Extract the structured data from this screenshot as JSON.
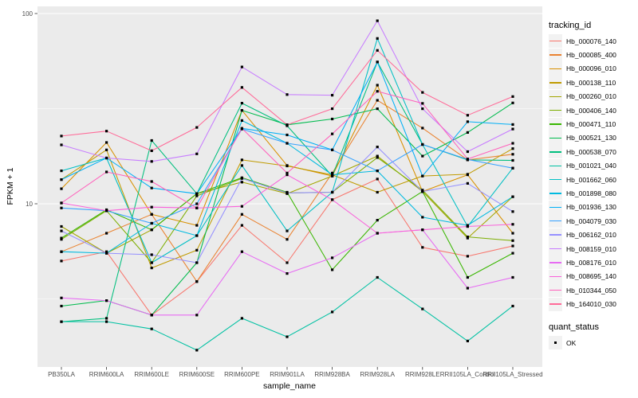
{
  "axes": {
    "y_title": "FPKM + 1",
    "x_title": "sample_name",
    "y_ticks": [
      {
        "label": "100",
        "value": 100
      },
      {
        "label": "10",
        "value": 10
      }
    ],
    "y_minor_values": [
      31.623,
      3.1623
    ],
    "y_scale": "log10"
  },
  "legend": {
    "tracking_title": "tracking_id",
    "quant_title": "quant_status",
    "quant_items": [
      "OK"
    ]
  },
  "colors": {
    "panel_bg": "#EBEBEB",
    "grid": "#FFFFFF",
    "axis_text": "#4D4D4D",
    "tick_mark": "#333333",
    "point": "#000000",
    "legend_key_bg": "#F2F2F2"
  },
  "chart_data": {
    "type": "line",
    "title": "",
    "xlabel": "sample_name",
    "ylabel": "FPKM + 1",
    "y_scale": "log10",
    "ylim": [
      1.4,
      120
    ],
    "grid": "white major at 10 and 100, minor at 3.16 and 31.6",
    "legend_position": "right",
    "point_marker": "black-square",
    "quant_status": "OK",
    "categories": [
      "PB350LA",
      "RRIM600LA",
      "RRIM600LE",
      "RRIM600SE",
      "RRIM600PE",
      "RRIM901LA",
      "RRIM928BA",
      "RRIM928LA",
      "RRIM928LE",
      "RRII105LA_Control",
      "RRII105LA_Stressed"
    ],
    "series": [
      {
        "name": "Hb_000076_140",
        "color": "#F8766D",
        "values": [
          5.0,
          5.6,
          2.6,
          3.9,
          7.7,
          4.9,
          10.5,
          13.5,
          5.9,
          5.3,
          6.0
        ]
      },
      {
        "name": "Hb_000085_400",
        "color": "#EA8331",
        "values": [
          5.6,
          7.0,
          8.8,
          3.9,
          8.8,
          6.5,
          14.5,
          35.0,
          25.0,
          17.0,
          18.2
        ]
      },
      {
        "name": "Hb_000096_010",
        "color": "#D89000",
        "values": [
          12.0,
          21.0,
          8.8,
          7.7,
          31.0,
          15.9,
          14.0,
          42.0,
          11.6,
          14.2,
          7.0
        ]
      },
      {
        "name": "Hb_000138_110",
        "color": "#C09B00",
        "values": [
          13.4,
          19.2,
          4.6,
          5.7,
          17.0,
          15.8,
          14.2,
          11.5,
          14.0,
          14.3,
          19.5
        ]
      },
      {
        "name": "Hb_000260_010",
        "color": "#A3A500",
        "values": [
          7.6,
          5.5,
          7.3,
          11.3,
          13.0,
          11.3,
          14.0,
          17.8,
          11.6,
          6.6,
          10.9
        ]
      },
      {
        "name": "Hb_000406_140",
        "color": "#7CAE00",
        "values": [
          6.5,
          9.2,
          4.9,
          11.0,
          13.6,
          11.4,
          11.5,
          17.5,
          11.8,
          6.7,
          6.4
        ]
      },
      {
        "name": "Hb_000471_110",
        "color": "#39B600",
        "values": [
          6.6,
          9.3,
          7.3,
          11.3,
          13.7,
          11.5,
          4.5,
          8.2,
          11.6,
          4.1,
          5.5
        ]
      },
      {
        "name": "Hb_000521_130",
        "color": "#00BB4E",
        "values": [
          2.9,
          3.1,
          2.6,
          4.9,
          31.0,
          26.0,
          27.9,
          31.6,
          17.8,
          23.7,
          33.9
        ]
      },
      {
        "name": "Hb_000538_070",
        "color": "#00BF7D",
        "values": [
          2.4,
          2.5,
          21.5,
          11.3,
          33.8,
          25.7,
          14.0,
          55.6,
          20.5,
          17.0,
          16.9
        ]
      },
      {
        "name": "Hb_001021_040",
        "color": "#00C1A3",
        "values": [
          2.4,
          2.4,
          2.2,
          1.7,
          2.5,
          2.0,
          2.7,
          4.1,
          2.8,
          1.9,
          2.9
        ]
      },
      {
        "name": "Hb_001662_060",
        "color": "#00BFC4",
        "values": [
          14.9,
          17.4,
          4.9,
          6.8,
          15.9,
          7.2,
          11.5,
          74.0,
          20.5,
          7.6,
          15.4
        ]
      },
      {
        "name": "Hb_001898_080",
        "color": "#00BAE0",
        "values": [
          5.6,
          5.5,
          7.9,
          6.8,
          27.4,
          20.8,
          14.2,
          14.9,
          8.5,
          7.7,
          10.9
        ]
      },
      {
        "name": "Hb_001936_130",
        "color": "#00B0F6",
        "values": [
          13.4,
          17.4,
          12.1,
          11.3,
          24.9,
          23.0,
          19.2,
          55.6,
          14.0,
          27.0,
          26.1
        ]
      },
      {
        "name": "Hb_004079_030",
        "color": "#35A2FF",
        "values": [
          9.5,
          9.2,
          7.9,
          10.0,
          24.7,
          20.8,
          19.2,
          14.9,
          20.5,
          17.1,
          15.4
        ]
      },
      {
        "name": "Hb_006162_010",
        "color": "#9590FF",
        "values": [
          7.2,
          5.5,
          5.4,
          4.9,
          13.6,
          11.4,
          11.5,
          19.9,
          11.6,
          12.8,
          9.1
        ]
      },
      {
        "name": "Hb_008159_010",
        "color": "#C77CFF",
        "values": [
          20.4,
          17.4,
          16.7,
          18.3,
          52.4,
          37.5,
          37.2,
          91.6,
          31.6,
          18.8,
          24.7
        ]
      },
      {
        "name": "Hb_008176_010",
        "color": "#E76BF3",
        "values": [
          3.2,
          3.1,
          2.6,
          2.6,
          5.6,
          4.3,
          5.2,
          7.0,
          7.3,
          3.6,
          4.1
        ]
      },
      {
        "name": "Hb_008695_140",
        "color": "#FA62DB",
        "values": [
          10.1,
          9.2,
          9.6,
          9.5,
          9.7,
          14.2,
          10.5,
          7.0,
          7.3,
          7.6,
          7.8
        ]
      },
      {
        "name": "Hb_010344_050",
        "color": "#FF62BC",
        "values": [
          10.1,
          14.7,
          13.1,
          9.5,
          24.9,
          14.5,
          23.3,
          39.0,
          33.7,
          17.2,
          20.8
        ]
      },
      {
        "name": "Hb_164010_030",
        "color": "#FF6A98",
        "values": [
          22.7,
          24.1,
          19.0,
          25.2,
          40.9,
          26.0,
          31.6,
          64.0,
          38.5,
          29.2,
          36.6
        ]
      }
    ]
  }
}
